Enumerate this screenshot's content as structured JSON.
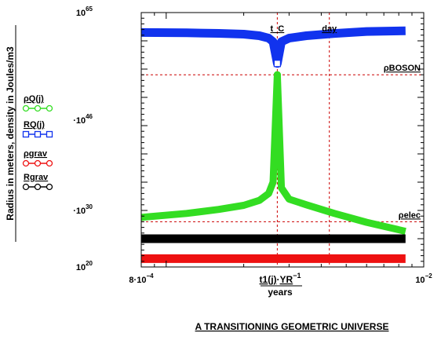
{
  "chart_data": {
    "type": "line",
    "title": "A TRANSITIONING GEOMETRIC UNIVERSE",
    "y_axis_title": "Radius in meters, density in Joules/m3",
    "x_axis_label": {
      "numerator_prefix": "t1(j)",
      "numerator_dot": "·",
      "numerator_suffix": "YR",
      "numerator_exponent": "−1",
      "denominator": "years"
    },
    "x_scale": "log",
    "y_scale": "log",
    "xlim": [
      0.0008,
      0.01
    ],
    "ylim": [
      1e+20,
      1e+65
    ],
    "x_ticks": [
      {
        "value": 0.0008,
        "mantissa": "8·10",
        "exponent": "−4"
      },
      {
        "value": 0.01,
        "mantissa": "10",
        "exponent": "−2"
      }
    ],
    "y_ticks": [
      {
        "value": 1e+65,
        "mantissa": "10",
        "exponent": "65"
      },
      {
        "value": 1e+46,
        "mantissa": "·10",
        "exponent": "46"
      },
      {
        "value": 1e+30,
        "mantissa": "·10",
        "exponent": "30"
      },
      {
        "value": 1e+20,
        "mantissa": "10",
        "exponent": "20"
      }
    ],
    "vertical_markers": [
      {
        "x": 0.0027,
        "label": "t_C",
        "color": "#cc0000"
      },
      {
        "x": 0.0043,
        "label": "day",
        "color": "#cc0000"
      }
    ],
    "horizontal_markers": [
      {
        "y": 1e+54,
        "label": "ρBOSON",
        "color": "#cc0000"
      },
      {
        "y": 1e+28,
        "label": "ρelec",
        "color": "#cc0000"
      }
    ],
    "series": [
      {
        "name": "ρQ(j)",
        "color": "#33dd22",
        "marker": "circle",
        "x": [
          0.0008,
          0.0012,
          0.0016,
          0.002,
          0.0023,
          0.0025,
          0.0026,
          0.0027,
          0.0028,
          0.003,
          0.0035,
          0.0045,
          0.006,
          0.0085
        ],
        "y": [
          6e+28,
          3e+29,
          1.5e+30,
          8e+30,
          6e+31,
          1e+33,
          1e+35,
          1e+54,
          1e+34,
          1e+32,
          1e+31,
          3e+29,
          8e+27,
          2e+26
        ]
      },
      {
        "name": "RQ(j)",
        "color": "#1133ee",
        "marker": "square",
        "x": [
          0.0008,
          0.0012,
          0.0016,
          0.002,
          0.0023,
          0.0025,
          0.0026,
          0.0027,
          0.0028,
          0.003,
          0.0035,
          0.0045,
          0.006,
          0.0085
        ],
        "y": [
          3e+61,
          2.6e+61,
          2.1e+61,
          1.5e+61,
          8e+60,
          3e+60,
          7e+59,
          1e+56,
          7e+59,
          3e+60,
          8e+60,
          2e+61,
          4.5e+61,
          6e+61
        ]
      },
      {
        "name": "ρgrav",
        "color": "#ee1111",
        "marker": "circle-open",
        "x": [
          0.0008,
          0.0085
        ],
        "y": [
          3e+21,
          3e+21
        ]
      },
      {
        "name": "Rgrav",
        "color": "#000000",
        "marker": "circle-open",
        "x": [
          0.0008,
          0.0085
        ],
        "y": [
          1e+25,
          1e+25
        ]
      }
    ]
  }
}
